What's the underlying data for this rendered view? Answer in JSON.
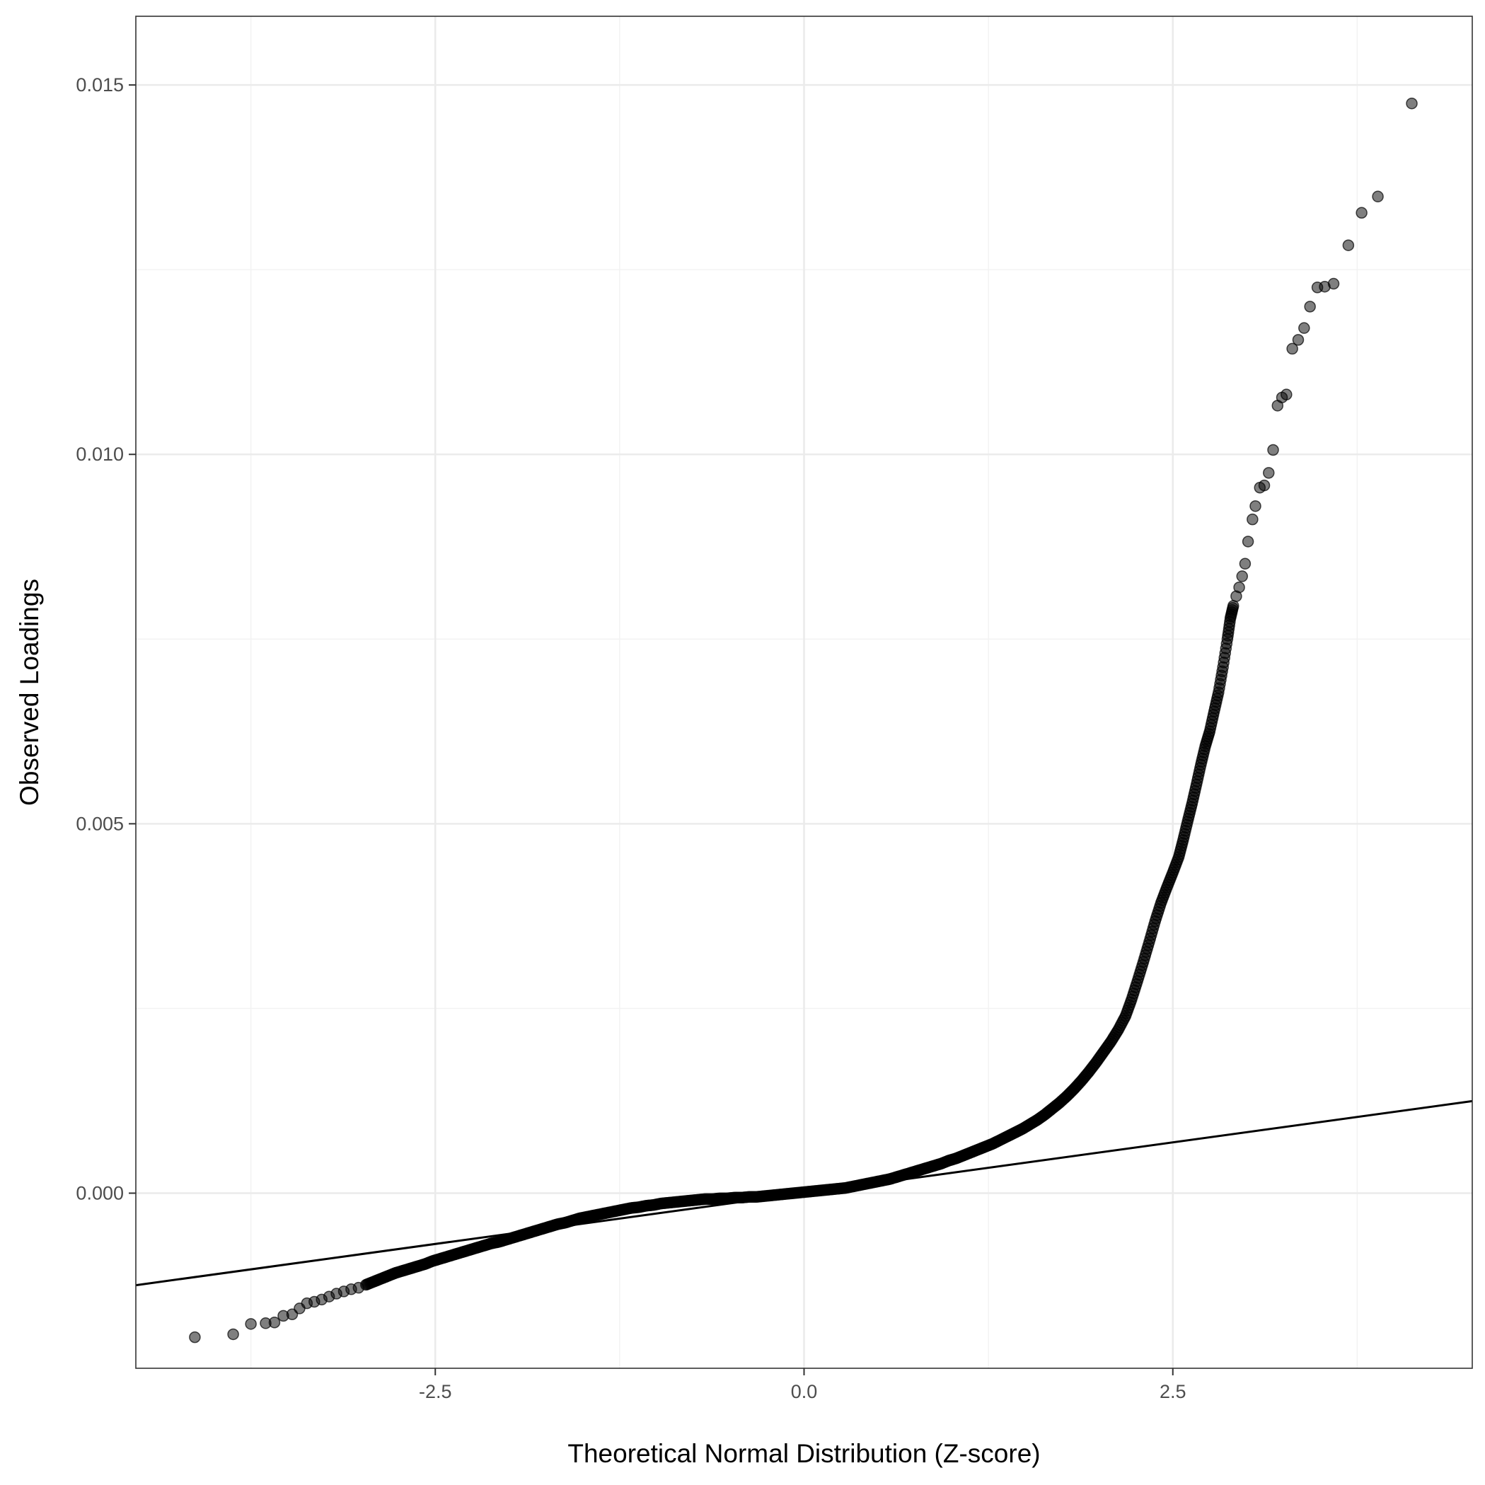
{
  "chart_data": {
    "type": "scatter",
    "subtype": "qq-plot",
    "title": "",
    "xlabel": "Theoretical Normal Distribution (Z-score)",
    "ylabel": "Observed Loadings",
    "xlim": [
      -4.53,
      4.53
    ],
    "ylim": [
      -0.00237,
      0.01593
    ],
    "x_ticks": [
      -2.5,
      0.0,
      2.5
    ],
    "x_tick_labels": [
      "-2.5",
      "0.0",
      "2.5"
    ],
    "y_ticks": [
      0.0,
      0.005,
      0.01,
      0.015
    ],
    "y_tick_labels": [
      "0.000",
      "0.005",
      "0.010",
      "0.015"
    ],
    "grid": true,
    "legend": "none",
    "point_color": "#000000",
    "point_alpha": 0.5,
    "reference_line": {
      "intercept": 0.0,
      "slope": 0.000275,
      "color": "#000000"
    },
    "series": [
      {
        "points": [
          [
            -4.13,
            -0.00195
          ],
          [
            -3.87,
            -0.00191
          ],
          [
            -3.75,
            -0.00177
          ],
          [
            -3.65,
            -0.00176
          ],
          [
            -3.59,
            -0.00175
          ],
          [
            -3.53,
            -0.00166
          ],
          [
            -3.47,
            -0.00164
          ],
          [
            -3.42,
            -0.00156
          ],
          [
            -3.37,
            -0.00149
          ],
          [
            -3.32,
            -0.00147
          ],
          [
            -3.27,
            -0.00144
          ],
          [
            -3.22,
            -0.0014
          ],
          [
            -3.17,
            -0.00136
          ],
          [
            -3.12,
            -0.00133
          ],
          [
            -3.07,
            -0.0013
          ],
          [
            -3.02,
            -0.00128
          ],
          [
            -2.97,
            -0.00124
          ],
          [
            -2.92,
            -0.0012
          ],
          [
            -2.87,
            -0.00116
          ],
          [
            -2.82,
            -0.00112
          ],
          [
            -2.77,
            -0.00108
          ],
          [
            -2.72,
            -0.00105
          ],
          [
            -2.67,
            -0.00102
          ],
          [
            -2.62,
            -0.00099
          ],
          [
            -2.57,
            -0.00096
          ],
          [
            -2.52,
            -0.00092
          ],
          [
            -2.47,
            -0.00089
          ],
          [
            -2.42,
            -0.00086
          ],
          [
            -2.37,
            -0.00083
          ],
          [
            -2.32,
            -0.0008
          ],
          [
            -2.27,
            -0.00077
          ],
          [
            -2.22,
            -0.00074
          ],
          [
            -2.17,
            -0.00071
          ],
          [
            -2.12,
            -0.00068
          ],
          [
            -2.07,
            -0.00066
          ],
          [
            -2.02,
            -0.00063
          ],
          [
            -1.97,
            -0.0006
          ],
          [
            -1.92,
            -0.00057
          ],
          [
            -1.87,
            -0.00054
          ],
          [
            -1.82,
            -0.00051
          ],
          [
            -1.77,
            -0.00048
          ],
          [
            -1.72,
            -0.00045
          ],
          [
            -1.67,
            -0.00042
          ],
          [
            -1.62,
            -0.0004
          ],
          [
            -1.57,
            -0.00037
          ],
          [
            -1.52,
            -0.00034
          ],
          [
            -1.47,
            -0.00032
          ],
          [
            -1.42,
            -0.0003
          ],
          [
            -1.37,
            -0.00028
          ],
          [
            -1.32,
            -0.00026
          ],
          [
            -1.27,
            -0.00024
          ],
          [
            -1.22,
            -0.00022
          ],
          [
            -1.17,
            -0.0002
          ],
          [
            -1.12,
            -0.00019
          ],
          [
            -1.07,
            -0.00017
          ],
          [
            -1.02,
            -0.00016
          ],
          [
            -0.97,
            -0.00014
          ],
          [
            -0.92,
            -0.00013
          ],
          [
            -0.87,
            -0.00012
          ],
          [
            -0.82,
            -0.00011
          ],
          [
            -0.77,
            -0.0001
          ],
          [
            -0.72,
            -9e-05
          ],
          [
            -0.67,
            -8e-05
          ],
          [
            -0.62,
            -8e-05
          ],
          [
            -0.57,
            -7e-05
          ],
          [
            -0.52,
            -7e-05
          ],
          [
            -0.47,
            -6e-05
          ],
          [
            -0.42,
            -6e-05
          ],
          [
            -0.37,
            -5e-05
          ],
          [
            -0.32,
            -5e-05
          ],
          [
            -0.27,
            -4e-05
          ],
          [
            -0.22,
            -3e-05
          ],
          [
            -0.17,
            -2e-05
          ],
          [
            -0.12,
            -1e-05
          ],
          [
            -0.07,
            0.0
          ],
          [
            -0.02,
            1e-05
          ],
          [
            0.03,
            2e-05
          ],
          [
            0.08,
            3e-05
          ],
          [
            0.13,
            4e-05
          ],
          [
            0.18,
            5e-05
          ],
          [
            0.23,
            6e-05
          ],
          [
            0.28,
            7e-05
          ],
          [
            0.33,
            9e-05
          ],
          [
            0.38,
            0.00011
          ],
          [
            0.43,
            0.00013
          ],
          [
            0.48,
            0.00015
          ],
          [
            0.53,
            0.00017
          ],
          [
            0.58,
            0.00019
          ],
          [
            0.63,
            0.00022
          ],
          [
            0.68,
            0.00025
          ],
          [
            0.73,
            0.00028
          ],
          [
            0.78,
            0.00031
          ],
          [
            0.83,
            0.00034
          ],
          [
            0.88,
            0.00037
          ],
          [
            0.93,
            0.0004
          ],
          [
            0.98,
            0.00044
          ],
          [
            1.03,
            0.00047
          ],
          [
            1.08,
            0.00051
          ],
          [
            1.13,
            0.00055
          ],
          [
            1.18,
            0.00059
          ],
          [
            1.23,
            0.00063
          ],
          [
            1.28,
            0.00067
          ],
          [
            1.33,
            0.00072
          ],
          [
            1.38,
            0.00077
          ],
          [
            1.43,
            0.00082
          ],
          [
            1.48,
            0.00087
          ],
          [
            1.53,
            0.00093
          ],
          [
            1.58,
            0.00099
          ],
          [
            1.63,
            0.00106
          ],
          [
            1.68,
            0.00114
          ],
          [
            1.73,
            0.00122
          ],
          [
            1.78,
            0.00131
          ],
          [
            1.83,
            0.00141
          ],
          [
            1.88,
            0.00152
          ],
          [
            1.93,
            0.00164
          ],
          [
            1.98,
            0.00177
          ],
          [
            2.03,
            0.00191
          ],
          [
            2.08,
            0.00205
          ],
          [
            2.13,
            0.00221
          ],
          [
            2.18,
            0.0024
          ],
          [
            2.22,
            0.00262
          ],
          [
            2.26,
            0.00287
          ],
          [
            2.3,
            0.00313
          ],
          [
            2.34,
            0.0034
          ],
          [
            2.38,
            0.00368
          ],
          [
            2.42,
            0.00393
          ],
          [
            2.46,
            0.00414
          ],
          [
            2.5,
            0.00434
          ],
          [
            2.54,
            0.00455
          ],
          [
            2.57,
            0.00478
          ],
          [
            2.6,
            0.00503
          ],
          [
            2.63,
            0.00527
          ],
          [
            2.66,
            0.00553
          ],
          [
            2.69,
            0.0058
          ],
          [
            2.72,
            0.00605
          ],
          [
            2.75,
            0.00625
          ],
          [
            2.78,
            0.00652
          ],
          [
            2.81,
            0.00678
          ],
          [
            2.84,
            0.00712
          ],
          [
            2.87,
            0.0075
          ],
          [
            2.89,
            0.00778
          ],
          [
            2.91,
            0.00795
          ],
          [
            2.93,
            0.00808
          ],
          [
            2.95,
            0.0082
          ],
          [
            2.97,
            0.00835
          ],
          [
            2.99,
            0.00852
          ],
          [
            3.01,
            0.00882
          ],
          [
            3.04,
            0.00912
          ],
          [
            3.06,
            0.0093
          ],
          [
            3.09,
            0.00955
          ],
          [
            3.12,
            0.00958
          ],
          [
            3.15,
            0.00975
          ],
          [
            3.18,
            0.01006
          ],
          [
            3.21,
            0.01066
          ],
          [
            3.24,
            0.01077
          ],
          [
            3.27,
            0.01081
          ],
          [
            3.31,
            0.01143
          ],
          [
            3.35,
            0.01155
          ],
          [
            3.39,
            0.01171
          ],
          [
            3.43,
            0.012
          ],
          [
            3.48,
            0.01226
          ],
          [
            3.53,
            0.01227
          ],
          [
            3.59,
            0.01231
          ],
          [
            3.69,
            0.01283
          ],
          [
            3.78,
            0.01327
          ],
          [
            3.89,
            0.01349
          ],
          [
            4.12,
            0.01475
          ]
        ]
      }
    ]
  }
}
